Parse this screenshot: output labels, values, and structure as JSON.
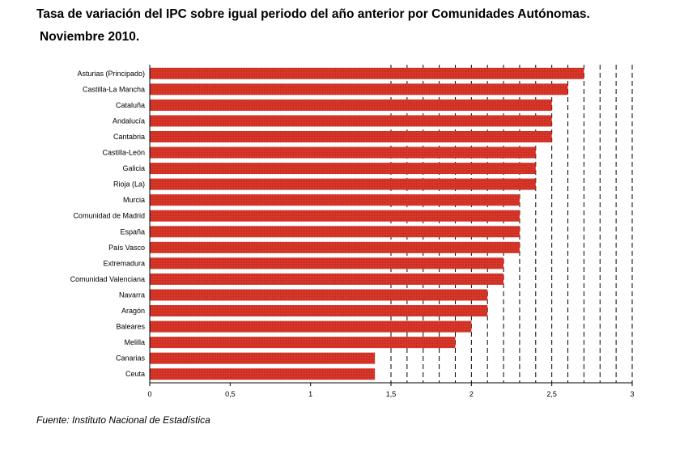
{
  "header": {
    "title_line1": "Tasa de variación del IPC sobre igual periodo del año anterior por Comunidades Autónomas.",
    "title_line2": "Noviembre 2010."
  },
  "footer": {
    "source": "Fuente: Instituto Nacional de Estadística"
  },
  "chart_data": {
    "type": "bar",
    "orientation": "horizontal",
    "title": "Tasa de variación del IPC sobre igual periodo del año anterior por Comunidades Autónomas. Noviembre 2010.",
    "xlabel": "",
    "ylabel": "",
    "categories": [
      "Asturias (Principado)",
      "Castilla-La Mancha",
      "Cataluña",
      "Andalucía",
      "Cantabria",
      "Castilla-León",
      "Galicia",
      "Rioja (La)",
      "Murcia",
      "Comunidad de Madrid",
      "España",
      "País Vasco",
      "Extremadura",
      "Comunidad Valenciana",
      "Navarra",
      "Aragón",
      "Baleares",
      "Melilla",
      "Canarias",
      "Ceuta"
    ],
    "values": [
      2.7,
      2.6,
      2.5,
      2.5,
      2.5,
      2.4,
      2.4,
      2.4,
      2.3,
      2.3,
      2.3,
      2.3,
      2.2,
      2.2,
      2.1,
      2.1,
      2.0,
      1.9,
      1.4,
      1.4
    ],
    "xlim": [
      0,
      3
    ],
    "xticks": [
      "0",
      "0,5",
      "1",
      "1,5",
      "2",
      "2,5",
      "3"
    ],
    "xtick_values": [
      0,
      0.5,
      1,
      1.5,
      2,
      2.5,
      3
    ],
    "gridlines_dashed_vertical": [
      1.5,
      1.6,
      1.7,
      1.8,
      1.9,
      2.0,
      2.1,
      2.2,
      2.3,
      2.4,
      2.5,
      2.6,
      2.7,
      2.8,
      2.9,
      3.0
    ],
    "grid": true,
    "legend": "none",
    "bar_color": "#d7382b"
  }
}
